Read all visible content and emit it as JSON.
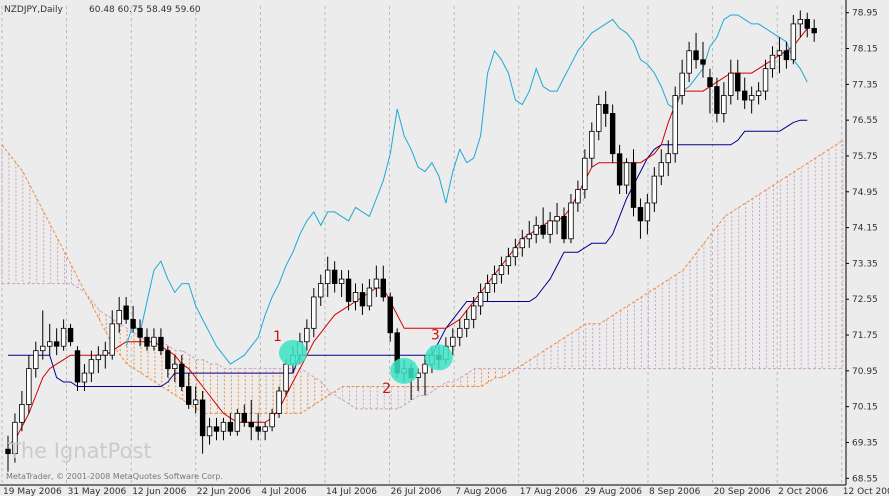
{
  "header": {
    "symbol": "NZDJPY,Daily",
    "ohlc": "60.48 60.75 58.49 59.60"
  },
  "watermark": "The IgnatPost",
  "copyright": "MetaTrader, © 2001-2008 MetaQuotes Software Corp.",
  "colors": {
    "background": "#ececec",
    "grid": "#a8a8a8",
    "tenkan": "#d00000",
    "kijun": "#00008b",
    "chikou": "#1ea9d4",
    "cloud_up": "#c9a3c4",
    "cloud_down": "#f08c3c",
    "highlight": "#3ce3c4",
    "annotation": "#d01010"
  },
  "chart_data": {
    "type": "candlestick",
    "title": "",
    "xlabel": "",
    "ylabel": "",
    "ylim": [
      68.4,
      79.1
    ],
    "y_ticks": [
      "78.95",
      "78.15",
      "77.35",
      "76.55",
      "75.75",
      "74.95",
      "74.15",
      "73.35",
      "72.55",
      "71.75",
      "70.95",
      "70.15",
      "69.35",
      "68.55"
    ],
    "x_ticks": [
      "19 May 2006",
      "31 May 2006",
      "12 Jun 2006",
      "22 Jun 2006",
      "4 Jul 2006",
      "14 Jul 2006",
      "26 Jul 2006",
      "7 Aug 2006",
      "17 Aug 2006",
      "29 Aug 2006",
      "8 Sep 2006",
      "20 Sep 2006",
      "2 Oct 2006",
      "12 Oct 2006"
    ],
    "grid": true,
    "candles": [
      {
        "o": 69.2,
        "h": 69.5,
        "l": 68.7,
        "c": 69.1
      },
      {
        "o": 69.1,
        "h": 70.0,
        "l": 68.9,
        "c": 69.8
      },
      {
        "o": 69.8,
        "h": 70.5,
        "l": 69.6,
        "c": 70.2
      },
      {
        "o": 70.2,
        "h": 71.3,
        "l": 70.0,
        "c": 71.0
      },
      {
        "o": 71.0,
        "h": 71.6,
        "l": 70.8,
        "c": 71.4
      },
      {
        "o": 71.4,
        "h": 72.3,
        "l": 71.2,
        "c": 71.5
      },
      {
        "o": 71.5,
        "h": 72.0,
        "l": 71.3,
        "c": 71.6
      },
      {
        "o": 71.6,
        "h": 71.9,
        "l": 71.3,
        "c": 71.5
      },
      {
        "o": 71.5,
        "h": 72.1,
        "l": 71.4,
        "c": 71.9
      },
      {
        "o": 71.9,
        "h": 72.0,
        "l": 71.5,
        "c": 71.6
      },
      {
        "o": 71.4,
        "h": 71.5,
        "l": 70.5,
        "c": 70.7
      },
      {
        "o": 70.7,
        "h": 71.1,
        "l": 70.5,
        "c": 70.9
      },
      {
        "o": 70.9,
        "h": 71.4,
        "l": 70.7,
        "c": 71.2
      },
      {
        "o": 71.2,
        "h": 71.5,
        "l": 70.9,
        "c": 71.3
      },
      {
        "o": 71.3,
        "h": 71.6,
        "l": 71.0,
        "c": 71.4
      },
      {
        "o": 71.3,
        "h": 72.3,
        "l": 71.2,
        "c": 72.0
      },
      {
        "o": 72.0,
        "h": 72.6,
        "l": 71.8,
        "c": 72.3
      },
      {
        "o": 72.4,
        "h": 72.6,
        "l": 72.0,
        "c": 72.1
      },
      {
        "o": 72.1,
        "h": 72.4,
        "l": 71.8,
        "c": 71.9
      },
      {
        "o": 71.9,
        "h": 72.1,
        "l": 71.5,
        "c": 71.7
      },
      {
        "o": 71.7,
        "h": 71.9,
        "l": 71.4,
        "c": 71.5
      },
      {
        "o": 71.5,
        "h": 71.9,
        "l": 71.4,
        "c": 71.7
      },
      {
        "o": 71.7,
        "h": 71.9,
        "l": 71.3,
        "c": 71.4
      },
      {
        "o": 71.4,
        "h": 71.5,
        "l": 70.8,
        "c": 71.0
      },
      {
        "o": 71.0,
        "h": 71.3,
        "l": 70.7,
        "c": 71.1
      },
      {
        "o": 71.1,
        "h": 71.3,
        "l": 70.5,
        "c": 70.6
      },
      {
        "o": 70.6,
        "h": 70.9,
        "l": 70.1,
        "c": 70.2
      },
      {
        "o": 70.2,
        "h": 70.6,
        "l": 70.0,
        "c": 70.3
      },
      {
        "o": 70.3,
        "h": 70.5,
        "l": 69.1,
        "c": 69.5
      },
      {
        "o": 69.5,
        "h": 69.9,
        "l": 69.3,
        "c": 69.7
      },
      {
        "o": 69.7,
        "h": 69.9,
        "l": 69.4,
        "c": 69.6
      },
      {
        "o": 69.6,
        "h": 69.9,
        "l": 69.4,
        "c": 69.8
      },
      {
        "o": 69.8,
        "h": 70.0,
        "l": 69.5,
        "c": 69.6
      },
      {
        "o": 69.6,
        "h": 70.1,
        "l": 69.5,
        "c": 70.0
      },
      {
        "o": 70.0,
        "h": 70.2,
        "l": 69.7,
        "c": 69.8
      },
      {
        "o": 69.8,
        "h": 70.3,
        "l": 69.4,
        "c": 69.7
      },
      {
        "o": 69.7,
        "h": 70.0,
        "l": 69.4,
        "c": 69.6
      },
      {
        "o": 69.6,
        "h": 69.8,
        "l": 69.4,
        "c": 69.7
      },
      {
        "o": 69.7,
        "h": 70.1,
        "l": 69.6,
        "c": 70.0
      },
      {
        "o": 70.0,
        "h": 70.6,
        "l": 69.9,
        "c": 70.5
      },
      {
        "o": 70.5,
        "h": 71.2,
        "l": 70.4,
        "c": 71.1
      },
      {
        "o": 71.1,
        "h": 71.5,
        "l": 70.9,
        "c": 71.3
      },
      {
        "o": 71.3,
        "h": 71.8,
        "l": 71.1,
        "c": 71.6
      },
      {
        "o": 71.6,
        "h": 72.1,
        "l": 71.4,
        "c": 71.9
      },
      {
        "o": 71.9,
        "h": 72.8,
        "l": 71.7,
        "c": 72.6
      },
      {
        "o": 72.6,
        "h": 73.1,
        "l": 72.4,
        "c": 72.9
      },
      {
        "o": 72.9,
        "h": 73.5,
        "l": 72.6,
        "c": 73.2
      },
      {
        "o": 73.2,
        "h": 73.4,
        "l": 72.7,
        "c": 72.9
      },
      {
        "o": 72.9,
        "h": 73.2,
        "l": 72.6,
        "c": 73.0
      },
      {
        "o": 73.0,
        "h": 73.2,
        "l": 72.3,
        "c": 72.5
      },
      {
        "o": 72.5,
        "h": 72.9,
        "l": 72.3,
        "c": 72.7
      },
      {
        "o": 72.7,
        "h": 72.9,
        "l": 72.2,
        "c": 72.4
      },
      {
        "o": 72.4,
        "h": 73.0,
        "l": 72.3,
        "c": 72.8
      },
      {
        "o": 72.8,
        "h": 73.3,
        "l": 72.6,
        "c": 73.0
      },
      {
        "o": 73.0,
        "h": 73.3,
        "l": 72.5,
        "c": 72.6
      },
      {
        "o": 72.6,
        "h": 72.7,
        "l": 71.6,
        "c": 71.8
      },
      {
        "o": 71.8,
        "h": 71.9,
        "l": 70.8,
        "c": 70.9
      },
      {
        "o": 70.9,
        "h": 71.2,
        "l": 70.7,
        "c": 71.0
      },
      {
        "o": 71.0,
        "h": 71.1,
        "l": 70.3,
        "c": 70.8
      },
      {
        "o": 70.8,
        "h": 71.0,
        "l": 70.5,
        "c": 70.9
      },
      {
        "o": 70.9,
        "h": 71.3,
        "l": 70.4,
        "c": 71.1
      },
      {
        "o": 71.1,
        "h": 71.5,
        "l": 70.9,
        "c": 71.3
      },
      {
        "o": 71.3,
        "h": 71.5,
        "l": 71.0,
        "c": 71.2
      },
      {
        "o": 71.2,
        "h": 71.7,
        "l": 71.1,
        "c": 71.5
      },
      {
        "o": 71.5,
        "h": 71.9,
        "l": 71.3,
        "c": 71.7
      },
      {
        "o": 71.7,
        "h": 72.1,
        "l": 71.5,
        "c": 71.9
      },
      {
        "o": 71.9,
        "h": 72.3,
        "l": 71.7,
        "c": 72.1
      },
      {
        "o": 72.1,
        "h": 72.6,
        "l": 71.9,
        "c": 72.4
      },
      {
        "o": 72.4,
        "h": 72.9,
        "l": 72.2,
        "c": 72.7
      },
      {
        "o": 72.7,
        "h": 73.1,
        "l": 72.5,
        "c": 72.9
      },
      {
        "o": 72.9,
        "h": 73.3,
        "l": 72.7,
        "c": 73.1
      },
      {
        "o": 73.1,
        "h": 73.5,
        "l": 72.9,
        "c": 73.3
      },
      {
        "o": 73.3,
        "h": 73.7,
        "l": 73.1,
        "c": 73.5
      },
      {
        "o": 73.5,
        "h": 73.9,
        "l": 73.3,
        "c": 73.7
      },
      {
        "o": 73.7,
        "h": 74.1,
        "l": 73.5,
        "c": 73.9
      },
      {
        "o": 73.9,
        "h": 74.3,
        "l": 73.7,
        "c": 74.0
      },
      {
        "o": 74.0,
        "h": 74.4,
        "l": 73.8,
        "c": 74.2
      },
      {
        "o": 74.2,
        "h": 74.6,
        "l": 73.9,
        "c": 74.0
      },
      {
        "o": 74.0,
        "h": 74.5,
        "l": 73.8,
        "c": 74.3
      },
      {
        "o": 74.3,
        "h": 74.7,
        "l": 74.0,
        "c": 74.4
      },
      {
        "o": 74.4,
        "h": 74.6,
        "l": 73.8,
        "c": 73.9
      },
      {
        "o": 73.9,
        "h": 74.9,
        "l": 73.8,
        "c": 74.7
      },
      {
        "o": 74.7,
        "h": 75.2,
        "l": 74.5,
        "c": 75.0
      },
      {
        "o": 75.0,
        "h": 75.9,
        "l": 74.8,
        "c": 75.7
      },
      {
        "o": 75.7,
        "h": 76.5,
        "l": 75.5,
        "c": 76.3
      },
      {
        "o": 76.3,
        "h": 77.1,
        "l": 76.1,
        "c": 76.9
      },
      {
        "o": 76.9,
        "h": 77.2,
        "l": 76.4,
        "c": 76.7
      },
      {
        "o": 76.7,
        "h": 76.9,
        "l": 75.6,
        "c": 75.8
      },
      {
        "o": 75.8,
        "h": 76.0,
        "l": 74.9,
        "c": 75.1
      },
      {
        "o": 75.1,
        "h": 75.7,
        "l": 74.9,
        "c": 75.6
      },
      {
        "o": 75.6,
        "h": 75.9,
        "l": 74.4,
        "c": 74.6
      },
      {
        "o": 74.6,
        "h": 74.8,
        "l": 73.9,
        "c": 74.3
      },
      {
        "o": 74.3,
        "h": 74.9,
        "l": 74.0,
        "c": 74.7
      },
      {
        "o": 74.7,
        "h": 75.5,
        "l": 74.5,
        "c": 75.3
      },
      {
        "o": 75.3,
        "h": 75.9,
        "l": 75.1,
        "c": 75.6
      },
      {
        "o": 75.6,
        "h": 76.1,
        "l": 75.3,
        "c": 75.8
      },
      {
        "o": 75.8,
        "h": 77.3,
        "l": 75.6,
        "c": 77.1
      },
      {
        "o": 77.1,
        "h": 77.9,
        "l": 76.9,
        "c": 77.6
      },
      {
        "o": 77.6,
        "h": 78.3,
        "l": 77.4,
        "c": 78.1
      },
      {
        "o": 78.1,
        "h": 78.5,
        "l": 77.7,
        "c": 77.9
      },
      {
        "o": 77.9,
        "h": 78.3,
        "l": 77.5,
        "c": 77.8
      },
      {
        "o": 77.5,
        "h": 77.7,
        "l": 76.7,
        "c": 77.3
      },
      {
        "o": 77.3,
        "h": 77.5,
        "l": 76.5,
        "c": 76.7
      },
      {
        "o": 76.7,
        "h": 77.4,
        "l": 76.5,
        "c": 77.1
      },
      {
        "o": 77.1,
        "h": 77.9,
        "l": 76.9,
        "c": 77.6
      },
      {
        "o": 77.6,
        "h": 77.9,
        "l": 77.0,
        "c": 77.2
      },
      {
        "o": 77.2,
        "h": 77.5,
        "l": 76.8,
        "c": 77.0
      },
      {
        "o": 77.0,
        "h": 77.3,
        "l": 76.7,
        "c": 77.1
      },
      {
        "o": 77.1,
        "h": 77.4,
        "l": 76.9,
        "c": 77.2
      },
      {
        "o": 77.2,
        "h": 77.9,
        "l": 77.0,
        "c": 77.7
      },
      {
        "o": 77.7,
        "h": 78.2,
        "l": 77.5,
        "c": 78.0
      },
      {
        "o": 78.0,
        "h": 78.4,
        "l": 77.6,
        "c": 78.1
      },
      {
        "o": 78.1,
        "h": 78.3,
        "l": 77.7,
        "c": 77.9
      },
      {
        "o": 77.9,
        "h": 78.9,
        "l": 77.8,
        "c": 78.7
      },
      {
        "o": 78.7,
        "h": 79.0,
        "l": 78.4,
        "c": 78.8
      },
      {
        "o": 78.8,
        "h": 78.95,
        "l": 78.4,
        "c": 78.6
      },
      {
        "o": 78.6,
        "h": 78.8,
        "l": 78.3,
        "c": 78.5
      }
    ],
    "tenkan": [
      69.3,
      69.4,
      69.7,
      70.0,
      70.4,
      70.8,
      71.0,
      71.1,
      71.2,
      71.3,
      71.3,
      71.3,
      71.3,
      71.3,
      71.3,
      71.4,
      71.5,
      71.6,
      71.6,
      71.6,
      71.6,
      71.6,
      71.5,
      71.4,
      71.3,
      71.1,
      71.0,
      70.8,
      70.6,
      70.4,
      70.2,
      70.0,
      69.9,
      69.8,
      69.8,
      69.8,
      69.8,
      69.8,
      69.9,
      70.1,
      70.4,
      70.7,
      71.0,
      71.3,
      71.6,
      71.8,
      72.0,
      72.2,
      72.3,
      72.4,
      72.5,
      72.6,
      72.7,
      72.8,
      72.8,
      72.5,
      72.2,
      71.9,
      71.9,
      71.9,
      71.9,
      71.9,
      71.9,
      71.9,
      72.0,
      72.1,
      72.3,
      72.5,
      72.7,
      72.9,
      73.1,
      73.3,
      73.5,
      73.7,
      73.9,
      74.0,
      74.1,
      74.2,
      74.3,
      74.3,
      74.4,
      74.6,
      74.9,
      75.2,
      75.5,
      75.6,
      75.6,
      75.6,
      75.6,
      75.6,
      75.6,
      75.6,
      75.7,
      75.8,
      76.0,
      76.5,
      76.9,
      77.2,
      77.2,
      77.2,
      77.2,
      77.3,
      77.4,
      77.5,
      77.6,
      77.6,
      77.6,
      77.6,
      77.7,
      77.8,
      77.9,
      78.0,
      78.1,
      78.2,
      78.4,
      78.6
    ],
    "kijun": [
      71.3,
      71.3,
      71.3,
      71.3,
      71.3,
      71.3,
      71.3,
      70.8,
      70.7,
      70.7,
      70.6,
      70.6,
      70.6,
      70.6,
      70.6,
      70.6,
      70.6,
      70.6,
      70.6,
      70.6,
      70.6,
      70.6,
      70.6,
      70.7,
      70.9,
      70.9,
      70.9,
      70.9,
      70.9,
      70.9,
      70.9,
      70.9,
      70.9,
      70.9,
      70.9,
      70.9,
      70.9,
      70.9,
      70.9,
      70.9,
      70.9,
      70.9,
      71.3,
      71.3,
      71.3,
      71.3,
      71.3,
      71.3,
      71.3,
      71.3,
      71.3,
      71.3,
      71.3,
      71.3,
      71.3,
      71.3,
      71.3,
      71.3,
      71.3,
      71.3,
      71.3,
      71.3,
      71.6,
      71.9,
      72.1,
      72.3,
      72.5,
      72.5,
      72.5,
      72.5,
      72.5,
      72.5,
      72.5,
      72.5,
      72.5,
      72.5,
      72.6,
      72.8,
      73.0,
      73.3,
      73.6,
      73.6,
      73.6,
      73.7,
      73.8,
      73.8,
      73.8,
      74.0,
      74.4,
      74.8,
      75.1,
      75.4,
      75.7,
      75.9,
      76.0,
      76.0,
      76.0,
      76.0,
      76.0,
      76.0,
      76.0,
      76.0,
      76.0,
      76.0,
      76.0,
      76.1,
      76.3,
      76.3,
      76.3,
      76.3,
      76.3,
      76.3,
      76.4,
      76.5,
      76.55,
      76.55
    ],
    "chikou": [
      71.5,
      72.0,
      71.8,
      72.5,
      73.2,
      73.4,
      73.0,
      72.7,
      72.9,
      72.9,
      72.4,
      72.1,
      71.8,
      71.5,
      71.3,
      71.1,
      71.2,
      71.3,
      71.5,
      71.7,
      72.2,
      72.6,
      72.9,
      73.3,
      73.6,
      74.0,
      74.3,
      74.5,
      74.2,
      74.5,
      74.5,
      74.4,
      74.3,
      74.6,
      74.5,
      74.4,
      74.8,
      75.2,
      75.8,
      76.8,
      76.2,
      75.9,
      75.5,
      75.4,
      75.6,
      75.3,
      74.7,
      75.4,
      75.9,
      75.6,
      75.7,
      76.2,
      77.6,
      78.1,
      77.9,
      77.6,
      77.0,
      76.9,
      77.2,
      77.7,
      77.3,
      77.2,
      77.2,
      77.5,
      77.8,
      78.1,
      78.3,
      78.5,
      78.6,
      78.7,
      78.8,
      78.6,
      78.5,
      78.3,
      77.9,
      77.8,
      77.6,
      77.3,
      76.9,
      76.8,
      77.2,
      77.3,
      77.5,
      77.7,
      78.2,
      78.4,
      78.8,
      78.9,
      78.9,
      78.8,
      78.7,
      78.7,
      78.6,
      78.5,
      78.4,
      78.3,
      77.9,
      77.7,
      77.4
    ],
    "chikou_start": 0,
    "span_a": [
      76.0,
      75.8,
      75.6,
      75.4,
      75.1,
      74.8,
      74.5,
      74.2,
      73.9,
      73.6,
      73.3,
      73.0,
      72.7,
      72.4,
      72.1,
      71.8,
      71.5,
      71.3,
      71.1,
      71.0,
      70.9,
      70.8,
      70.7,
      70.6,
      70.5,
      70.4,
      70.3,
      70.2,
      70.1,
      70.0,
      70.0,
      70.0,
      70.0,
      70.0,
      70.0,
      70.0,
      70.0,
      70.0,
      70.0,
      70.0,
      70.0,
      70.0,
      70.0,
      70.0,
      70.1,
      70.2,
      70.3,
      70.4,
      70.5,
      70.6,
      70.6,
      70.6,
      70.6,
      70.6,
      70.6,
      70.6,
      70.6,
      70.6,
      70.6,
      70.6,
      70.6,
      70.6,
      70.6,
      70.6,
      70.6,
      70.6,
      70.6,
      70.6,
      70.6,
      70.6,
      70.7,
      70.8,
      70.8,
      70.9,
      71.0,
      71.1,
      71.2,
      71.3,
      71.4,
      71.5,
      71.6,
      71.7,
      71.8,
      71.9,
      72.0,
      72.0,
      72.0,
      72.1,
      72.2,
      72.3,
      72.4,
      72.5,
      72.6,
      72.7,
      72.8,
      72.9,
      73.0,
      73.1,
      73.2,
      73.4,
      73.6,
      73.8,
      74.0,
      74.2,
      74.4,
      74.5,
      74.6,
      74.7,
      74.8,
      74.9,
      75.0,
      75.1,
      75.2,
      75.3,
      75.4,
      75.5,
      75.6,
      75.7,
      75.8,
      75.9,
      76.0,
      76.1,
      76.2,
      76.3,
      76.4,
      76.5,
      76.6,
      76.7,
      76.8,
      76.9,
      77.0,
      77.1,
      77.2,
      77.3,
      77.4,
      77.5,
      77.6,
      77.7,
      77.8,
      77.9,
      78.0,
      78.1,
      78.2,
      78.3,
      78.4,
      78.5,
      78.6,
      78.7,
      78.8,
      78.9
    ],
    "span_b": [
      72.9,
      72.9,
      72.9,
      72.9,
      72.9,
      72.9,
      72.9,
      72.9,
      72.9,
      72.9,
      72.9,
      72.8,
      72.7,
      72.5,
      72.3,
      72.2,
      72.1,
      72.0,
      71.9,
      71.8,
      71.7,
      71.6,
      71.6,
      71.6,
      71.5,
      71.4,
      71.4,
      71.3,
      71.2,
      71.2,
      71.1,
      71.1,
      71.0,
      71.0,
      71.0,
      71.0,
      71.0,
      71.0,
      71.0,
      71.0,
      71.0,
      71.0,
      71.0,
      71.0,
      70.9,
      70.8,
      70.7,
      70.5,
      70.4,
      70.3,
      70.2,
      70.1,
      70.1,
      70.1,
      70.1,
      70.1,
      70.1,
      70.1,
      70.2,
      70.3,
      70.4,
      70.4,
      70.5,
      70.6,
      70.7,
      70.7,
      70.8,
      70.9,
      71.0,
      71.0,
      71.0,
      71.0,
      71.0,
      71.0,
      71.0,
      71.0,
      71.0,
      71.0,
      71.0,
      71.0,
      71.0,
      71.0,
      71.0,
      71.0,
      71.0,
      71.0,
      71.0,
      71.0,
      71.0,
      71.0,
      71.0,
      71.0,
      71.0,
      71.0,
      71.0,
      71.0,
      71.0,
      71.0,
      71.0,
      71.0,
      71.0,
      71.0,
      71.0,
      71.0,
      71.0,
      71.0,
      71.0,
      71.0,
      71.0,
      71.0,
      71.0,
      71.0,
      71.0,
      71.0,
      71.0,
      71.0,
      71.0,
      71.0,
      71.0,
      71.0,
      71.0,
      71.0,
      71.0,
      71.0,
      71.0,
      71.0,
      71.0,
      71.0,
      71.0,
      71.0,
      71.0,
      71.0,
      71.0,
      71.0,
      71.0,
      71.0,
      71.0,
      71.0,
      71.0,
      71.0,
      71.0,
      71.0,
      71.0,
      71.0
    ],
    "annotations": [
      {
        "label": "1",
        "bar": 41,
        "price": 71.35
      },
      {
        "label": "2",
        "bar": 57,
        "price": 70.95
      },
      {
        "label": "3",
        "bar": 62,
        "price": 71.25
      }
    ]
  }
}
